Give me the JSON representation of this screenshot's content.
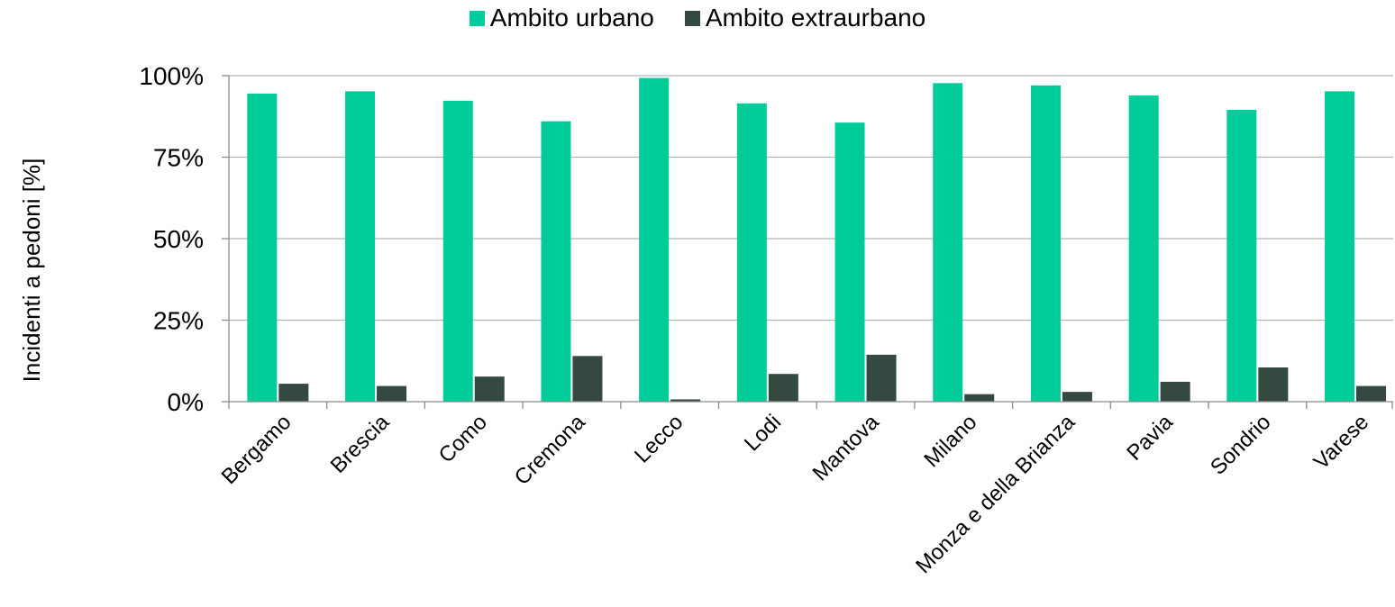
{
  "chart_data": {
    "type": "bar",
    "ylabel": "Incidenti a pedoni [%]",
    "xlabel": "",
    "ylim": [
      0,
      100
    ],
    "yticks": [
      "0%",
      "25%",
      "50%",
      "75%",
      "100%"
    ],
    "grid": true,
    "legend_position": "top-center",
    "categories": [
      "Bergamo",
      "Brescia",
      "Como",
      "Cremona",
      "Lecco",
      "Lodi",
      "Mantova",
      "Milano",
      "Monza e della Brianza",
      "Pavia",
      "Sondrio",
      "Varese"
    ],
    "series": [
      {
        "name": "Ambito urbano",
        "color": "#00cc99",
        "values": [
          94.5,
          95.2,
          92.3,
          86.0,
          99.3,
          91.5,
          85.6,
          97.7,
          97.0,
          93.9,
          89.5,
          95.2
        ]
      },
      {
        "name": "Ambito extraurbano",
        "color": "#34493f",
        "values": [
          5.5,
          4.8,
          7.7,
          14.0,
          0.7,
          8.5,
          14.4,
          2.3,
          3.0,
          6.1,
          10.5,
          4.8
        ]
      }
    ]
  }
}
